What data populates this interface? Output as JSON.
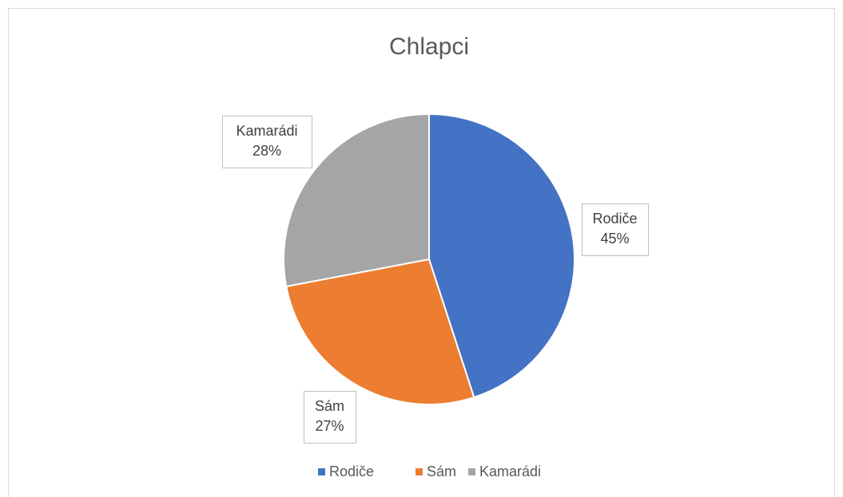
{
  "chart_data": {
    "type": "pie",
    "title": "Chlapci",
    "categories": [
      "Rodiče",
      "Sám",
      "Kamarádi"
    ],
    "values": [
      45,
      27,
      28
    ],
    "value_labels": [
      "45%",
      "27%",
      "28%"
    ],
    "colors": [
      "#4472c4",
      "#ed7d31",
      "#a5a5a5"
    ],
    "legend": "bottom"
  }
}
